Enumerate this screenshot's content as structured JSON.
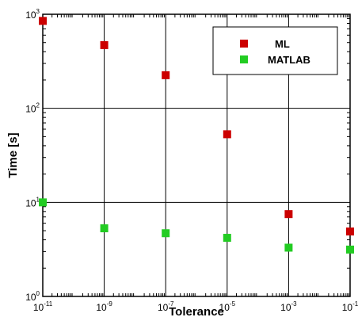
{
  "chart_data": {
    "type": "scatter",
    "xlabel": "Tolerance",
    "ylabel": "Time [s]",
    "x_scale": "log",
    "y_scale": "log",
    "xlim": [
      1e-11,
      0.1
    ],
    "ylim": [
      1,
      1000
    ],
    "x_ticks": [
      {
        "base": "10",
        "exp": "-11",
        "value": 1e-11
      },
      {
        "base": "10",
        "exp": "-9",
        "value": 1e-09
      },
      {
        "base": "10",
        "exp": "-7",
        "value": 1e-07
      },
      {
        "base": "10",
        "exp": "-5",
        "value": 1e-05
      },
      {
        "base": "10",
        "exp": "-3",
        "value": 0.001
      },
      {
        "base": "10",
        "exp": "-1",
        "value": 0.1
      }
    ],
    "y_ticks": [
      {
        "base": "10",
        "exp": "0",
        "value": 1
      },
      {
        "base": "10",
        "exp": "1",
        "value": 10
      },
      {
        "base": "10",
        "exp": "2",
        "value": 100
      },
      {
        "base": "10",
        "exp": "3",
        "value": 1000
      }
    ],
    "grid": true,
    "legend_position": "top-right",
    "series": [
      {
        "name": "ML",
        "color": "#cc0000",
        "x": [
          1e-11,
          1e-09,
          1e-07,
          1e-05,
          0.001,
          0.1
        ],
        "y": [
          850,
          470,
          225,
          53,
          7.5,
          4.9
        ]
      },
      {
        "name": "MATLAB",
        "color": "#22cc22",
        "x": [
          1e-11,
          1e-09,
          1e-07,
          1e-05,
          0.001,
          0.1
        ],
        "y": [
          10,
          5.3,
          4.7,
          4.2,
          3.3,
          3.15
        ]
      }
    ]
  }
}
